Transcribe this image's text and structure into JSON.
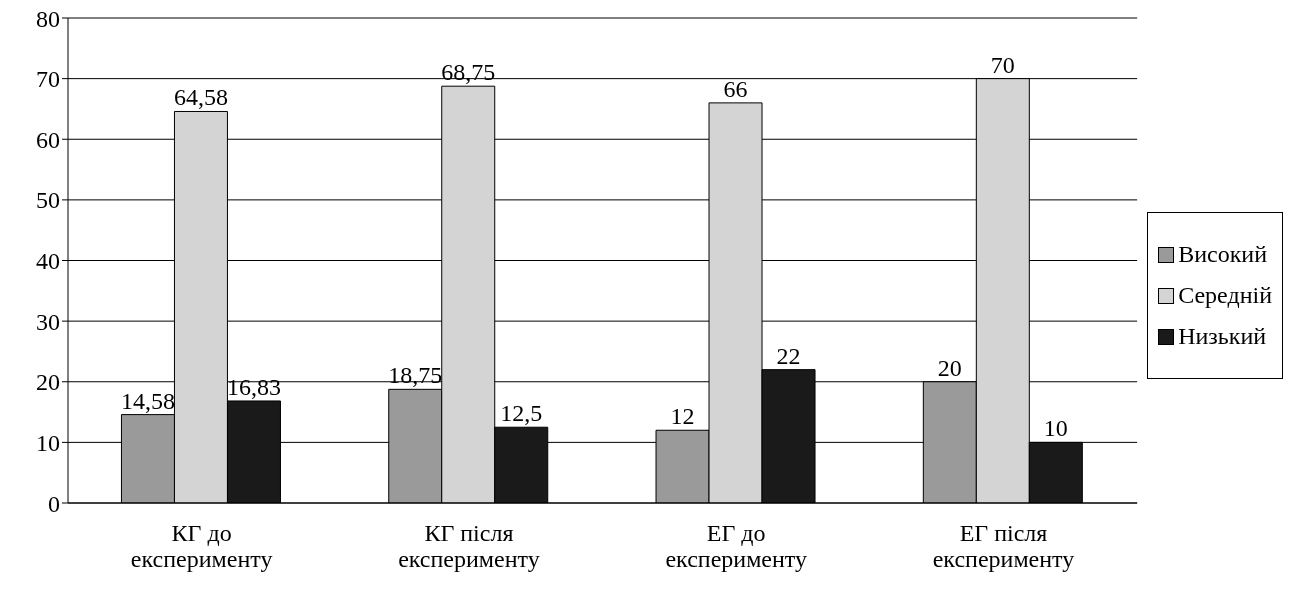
{
  "chart_data": {
    "type": "bar",
    "categories": [
      "КГ до експерименту",
      "КГ після експерименту",
      "ЕГ до експерименту",
      "ЕГ після експерименту"
    ],
    "series": [
      {
        "name": "Високий",
        "color": "#9a9a9a",
        "values": [
          14.58,
          18.75,
          12,
          20
        ],
        "value_labels": [
          "14,58",
          "18,75",
          "12",
          "20"
        ]
      },
      {
        "name": "Середній",
        "color": "#d4d4d4",
        "values": [
          64.58,
          68.75,
          66,
          70
        ],
        "value_labels": [
          "64,58",
          "68,75",
          "66",
          "70"
        ]
      },
      {
        "name": "Низький",
        "color": "#1a1a1a",
        "values": [
          16.83,
          12.5,
          22,
          10
        ],
        "value_labels": [
          "16,83",
          "12,5",
          "22",
          "10"
        ]
      }
    ],
    "ylim": [
      0,
      80
    ],
    "yticks": [
      0,
      10,
      20,
      30,
      40,
      50,
      60,
      70,
      80
    ],
    "grid": "y",
    "legend": "right"
  }
}
